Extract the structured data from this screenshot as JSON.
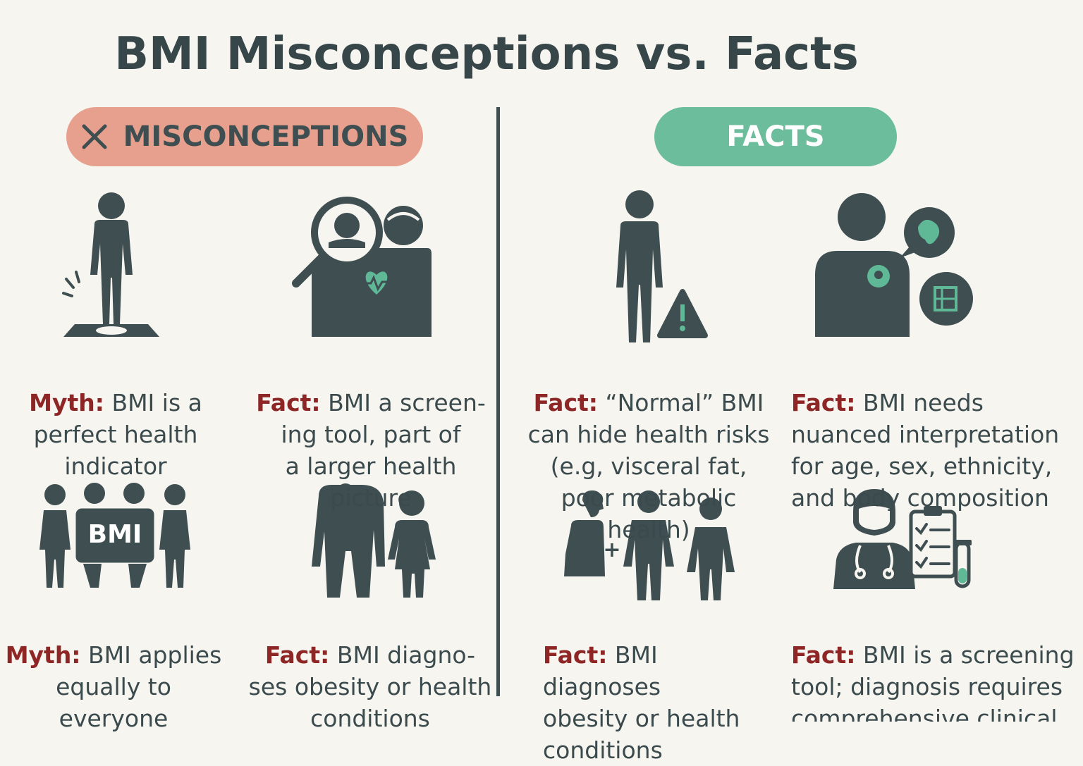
{
  "title": "BMI Misconceptions vs. Facts",
  "headers": {
    "misconceptions": "MISCONCEPTIONS",
    "facts": "FACTS"
  },
  "colors": {
    "myth_pill": "#e8a08e",
    "fact_pill": "#6bbd9b",
    "icon_dark": "#3e4e51",
    "label_red": "#8e2626",
    "accent_green": "#5fb896"
  },
  "cards": [
    {
      "lead": "Myth:",
      "text": " BMI is a\nperfect health\nindicator",
      "icon": "person-on-scale-icon"
    },
    {
      "lead": "Fact:",
      "text": " BMI a screen-\ning tool, part of\na larger health picture",
      "icon": "magnifier-people-heart-icon"
    },
    {
      "lead": "Fact:",
      "text": " “Normal” BMI\ncan hide health risks\n(e.g, visceral fat,\npoor metabolic health)",
      "icon": "person-warning-icon"
    },
    {
      "lead": "Fact:",
      "text": " BMI needs\nnuanced interpretation\nfor age, sex, ethnicity,\nand body composition",
      "icon": "person-organ-bubbles-icon"
    },
    {
      "lead": "Myth:",
      "text": " BMI applies\nequally to everyone",
      "icon": "group-bmi-icon",
      "badge": "BMI"
    },
    {
      "lead": "Fact:",
      "text": " BMI diagno-\nses obesity or health\nconditions",
      "icon": "adult-child-icon"
    },
    {
      "lead": "Fact:",
      "text": " BMI diagnoses\nobesity or health\nconditions",
      "icon": "family-plus-icon",
      "plus": "+"
    },
    {
      "lead": "Fact:",
      "text": " BMI is a screening\ntool; diagnosis requires\ncomprehensive clinical\nassessment",
      "icon": "doctor-clipboard-icon"
    }
  ]
}
